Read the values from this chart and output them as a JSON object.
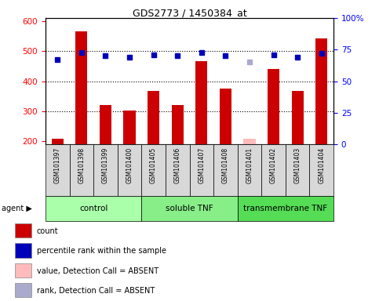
{
  "title": "GDS2773 / 1450384_at",
  "samples": [
    "GSM101397",
    "GSM101398",
    "GSM101399",
    "GSM101400",
    "GSM101405",
    "GSM101406",
    "GSM101407",
    "GSM101408",
    "GSM101401",
    "GSM101402",
    "GSM101403",
    "GSM101404"
  ],
  "counts": [
    210,
    567,
    320,
    302,
    367,
    322,
    467,
    375,
    210,
    440,
    368,
    543
  ],
  "percentile_ranks": [
    67,
    73,
    70,
    69,
    71,
    70,
    73,
    70,
    null,
    71,
    69,
    72
  ],
  "absent_counts": [
    null,
    null,
    null,
    null,
    null,
    null,
    null,
    null,
    210,
    null,
    null,
    null
  ],
  "absent_ranks": [
    null,
    null,
    null,
    null,
    null,
    null,
    null,
    null,
    65,
    null,
    null,
    null
  ],
  "groups": [
    {
      "label": "control",
      "start": 0,
      "end": 4,
      "color": "#aaffaa"
    },
    {
      "label": "soluble TNF",
      "start": 4,
      "end": 8,
      "color": "#88ee88"
    },
    {
      "label": "transmembrane TNF",
      "start": 8,
      "end": 12,
      "color": "#55dd55"
    }
  ],
  "ylim_left": [
    190,
    610
  ],
  "ylim_right": [
    0,
    100
  ],
  "yticks_left": [
    200,
    300,
    400,
    500,
    600
  ],
  "yticks_right": [
    0,
    25,
    50,
    75,
    100
  ],
  "ytick_labels_right": [
    "0",
    "25",
    "50",
    "75",
    "100%"
  ],
  "bar_color": "#cc0000",
  "dot_color": "#0000bb",
  "absent_bar_color": "#ffbbbb",
  "absent_dot_color": "#aaaacc",
  "bar_bottom": 190,
  "bar_width": 0.5,
  "legend_items": [
    {
      "color": "#cc0000",
      "label": "count"
    },
    {
      "color": "#0000bb",
      "label": "percentile rank within the sample"
    },
    {
      "color": "#ffbbbb",
      "label": "value, Detection Call = ABSENT"
    },
    {
      "color": "#aaaacc",
      "label": "rank, Detection Call = ABSENT"
    }
  ]
}
